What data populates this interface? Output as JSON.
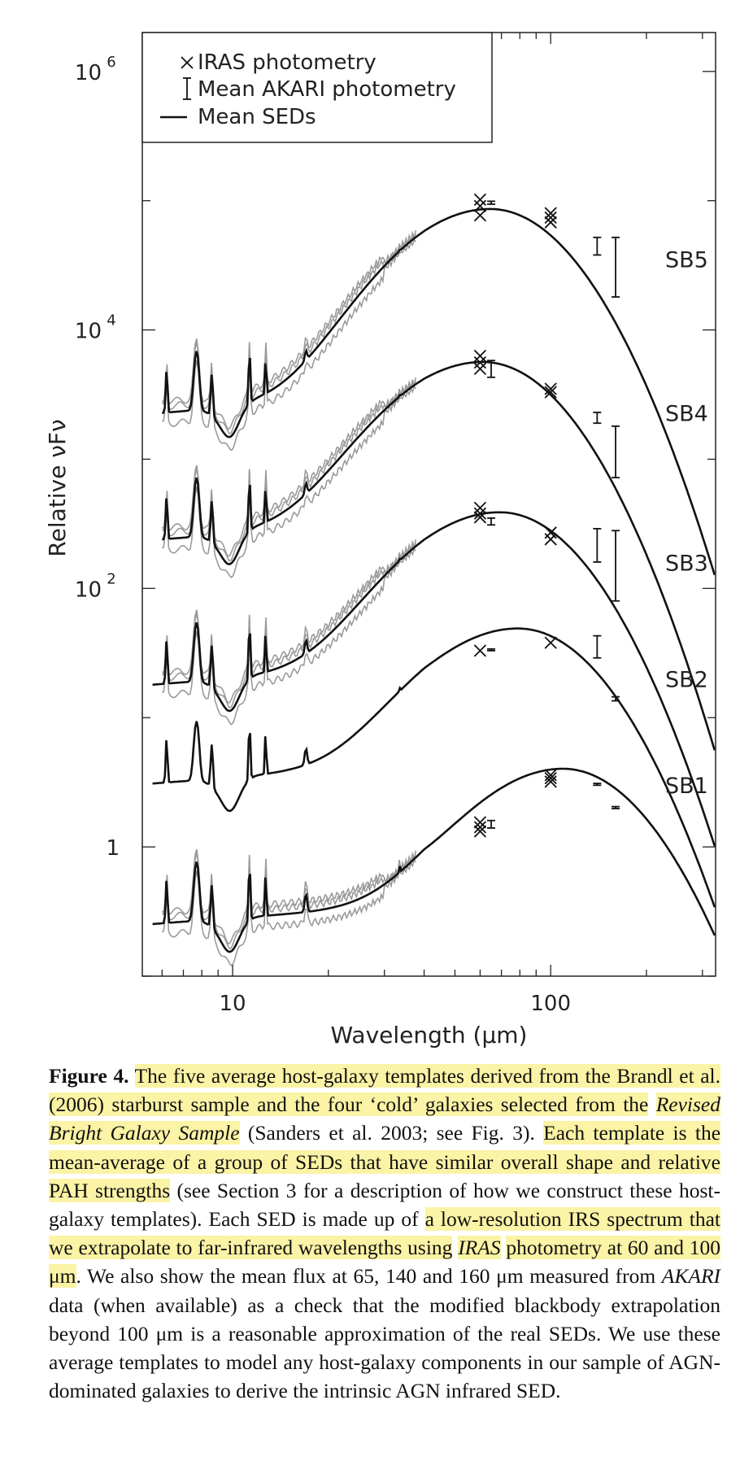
{
  "chart_data": {
    "type": "line",
    "xlabel": "Wavelength (μm)",
    "ylabel": "Relative νF_ν",
    "xscale": "log",
    "yscale": "log",
    "xlim": [
      5.2,
      330
    ],
    "ylim": [
      0.1,
      2000000
    ],
    "xticks": [
      10,
      100
    ],
    "xtick_labels": [
      "10",
      "100"
    ],
    "yticks": [
      1,
      100,
      10000,
      1000000
    ],
    "ytick_labels": [
      "1",
      "10",
      "2",
      "10",
      "4",
      "10",
      "6"
    ],
    "legend": {
      "placement": "top-left",
      "entries": [
        "IRAS photometry",
        "Mean AKARI photometry",
        "Mean SEDs"
      ]
    },
    "series": [
      {
        "name": "SB5",
        "label": "SB5",
        "pah_level": 4000,
        "ir_peak": 85000,
        "peak_wavelength": 65,
        "iras": [
          [
            60,
            102000
          ],
          [
            60,
            91000
          ],
          [
            60,
            77000
          ],
          [
            100,
            80000
          ],
          [
            100,
            74000
          ],
          [
            100,
            68000
          ]
        ],
        "akari": [
          [
            65,
            94000,
            99000
          ],
          [
            140,
            38000,
            52000
          ],
          [
            160,
            18000,
            52000
          ]
        ]
      },
      {
        "name": "SB4",
        "label": "SB4",
        "pah_level": 420,
        "ir_peak": 5500,
        "peak_wavelength": 62,
        "iras": [
          [
            60,
            6300
          ],
          [
            60,
            5600
          ],
          [
            60,
            5000
          ],
          [
            100,
            3500
          ],
          [
            100,
            3300
          ]
        ],
        "akari": [
          [
            65,
            4300,
            5800
          ],
          [
            140,
            1900,
            2300
          ],
          [
            160,
            720,
            1800
          ]
        ]
      },
      {
        "name": "SB3",
        "label": "SB3",
        "pah_level": 32,
        "ir_peak": 380,
        "peak_wavelength": 70,
        "iras": [
          [
            60,
            420
          ],
          [
            60,
            380
          ],
          [
            60,
            355
          ],
          [
            100,
            270
          ],
          [
            100,
            240
          ]
        ],
        "akari": [
          [
            65,
            310,
            350
          ],
          [
            140,
            160,
            290
          ],
          [
            160,
            80,
            280
          ]
        ]
      },
      {
        "name": "SB2",
        "label": "SB2",
        "pah_level": 5.5,
        "ir_peak": 48,
        "peak_wavelength": 80,
        "iras": [
          [
            60,
            33
          ],
          [
            100,
            38
          ]
        ],
        "akari": [
          [
            65,
            33,
            34
          ],
          [
            140,
            29,
            43
          ],
          [
            160,
            13.5,
            14.5
          ]
        ]
      },
      {
        "name": "SB1",
        "label": "SB1",
        "pah_level": 0.45,
        "ir_peak": 4.0,
        "peak_wavelength": 110,
        "iras": [
          [
            60,
            1.55
          ],
          [
            60,
            1.42
          ],
          [
            60,
            1.32
          ],
          [
            100,
            3.6
          ],
          [
            100,
            3.4
          ],
          [
            100,
            3.2
          ]
        ],
        "akari": [
          [
            65,
            1.4,
            1.6
          ],
          [
            140,
            3.0,
            3.1
          ],
          [
            160,
            1.98,
            2.05
          ]
        ]
      }
    ]
  },
  "caption": {
    "figure_label": "Figure 4.",
    "seg1_hl": "The five average host-galaxy templates derived from the Brandl et al. (2006) starburst sample and the four ‘cold’ galaxies selected from the",
    "seg1_italic": "Revised Bright Galaxy Sample",
    "seg2": "(Sanders et al. 2003; see Fig. 3).",
    "seg3_hl": "Each template is the mean-average of a group of SEDs that have similar overall shape and relative PAH strengths",
    "seg4": "(see Section 3 for a description of how we construct these host-galaxy templates). Each SED is made up of",
    "seg5_hl": "a low-resolution IRS spectrum that we extrapolate to far-infrared wavelengths using",
    "seg5_italic": "IRAS",
    "seg5_hl_end": "photometry at 60 and 100 μm",
    "seg6": ". We also show the mean flux at 65, 140 and 160 μm measured from",
    "seg6_italic": "AKARI",
    "seg7": "data (when available) as a check that the modified blackbody extrapolation beyond 100 μm is a reasonable approximation of the real SEDs. We use these average templates to model any host-galaxy components in our sample of AGN-dominated galaxies to derive the intrinsic AGN infrared SED."
  },
  "colors": {
    "mean_sed": "#111111",
    "individual_sed": "#9a9a9a",
    "highlight": "#fbf3a5",
    "axis": "#222222"
  }
}
